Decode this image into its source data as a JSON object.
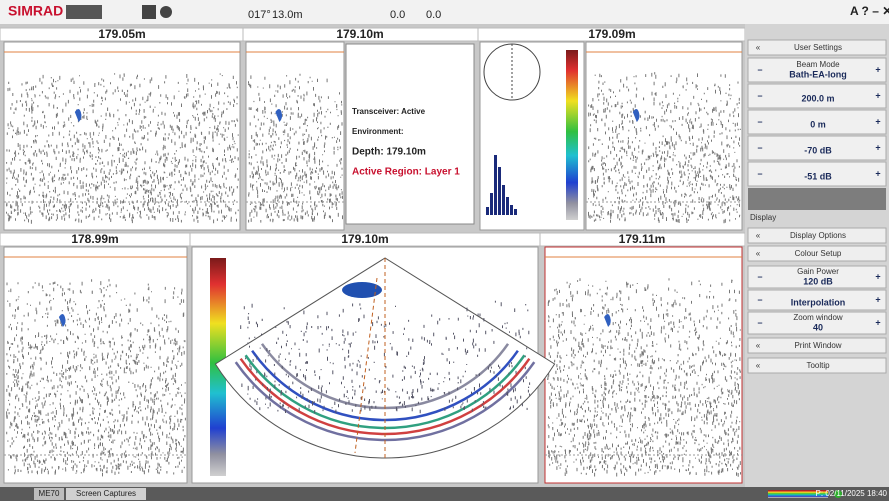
{
  "top_bar": {
    "logo": "SIMRAD",
    "readouts": [
      "017°",
      "13.0m",
      "0.0",
      "0.0"
    ]
  },
  "panels": [
    {
      "depth": "179.05m"
    },
    {
      "depth": "179.10m"
    },
    {
      "depth": "179.09m"
    },
    {
      "depth": "178.99m"
    },
    {
      "depth": "179.10m"
    },
    {
      "depth": "179.11m"
    }
  ],
  "info_box": {
    "lines": [
      "Transceiver: Active",
      "Environment:",
      "Depth: 179.10m",
      "Active Region: Layer 1"
    ]
  },
  "sidebar": {
    "user_settings": "User Settings",
    "beam_mode": {
      "label": "Beam Mode",
      "value": "Bath-EA-long"
    },
    "controls": [
      "200.0 m",
      "0 m",
      "-70 dB",
      "-51 dB"
    ],
    "section": "Display",
    "menu": [
      "Display Options",
      "Colour Setup"
    ],
    "gain": {
      "label": "Gain Power",
      "value": "120 dB"
    },
    "interpolation": "Interpolation",
    "zoom": {
      "label": "Zoom window",
      "value": "40"
    },
    "more": [
      "Print Window",
      "Tooltip"
    ]
  },
  "status_bar": {
    "app": "ME70",
    "tab": "Screen Captures",
    "time": "P: 02/11/2025 18:40"
  }
}
